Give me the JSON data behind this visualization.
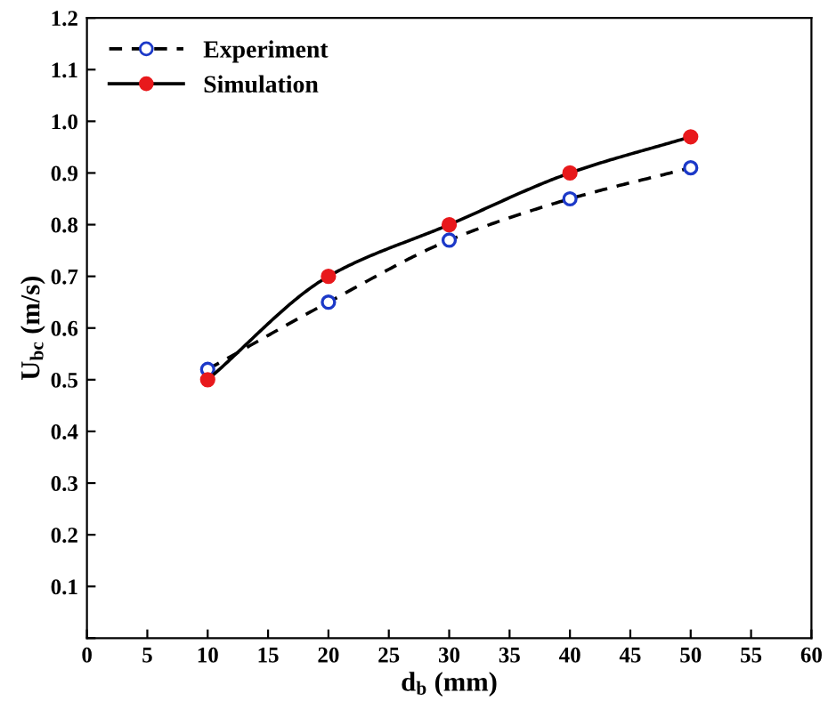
{
  "chart_data": {
    "type": "line",
    "xlabel": "d$_{b}$ (mm)",
    "ylabel": "U$_{bc}$ (m/s)",
    "x": [
      10,
      20,
      30,
      40,
      50
    ],
    "series": [
      {
        "name": "Experiment",
        "color": "#1c39c8",
        "values": [
          0.52,
          0.65,
          0.77,
          0.85,
          0.91
        ],
        "line_style": "dashed",
        "marker": "circle"
      },
      {
        "name": "Simulation",
        "color": "#e8191c",
        "values": [
          0.5,
          0.7,
          0.8,
          0.9,
          0.97
        ],
        "line_style": "solid",
        "marker": "circle"
      }
    ],
    "xlim": [
      0,
      60
    ],
    "xticks": [
      0,
      5,
      10,
      15,
      20,
      25,
      30,
      35,
      40,
      45,
      50,
      55,
      60
    ],
    "ylim": [
      0,
      1.2
    ],
    "yticks": [
      {
        "value": 0,
        "label": null
      },
      0.1,
      0.2,
      0.3,
      0.4,
      0.5,
      0.6,
      0.7,
      0.8,
      0.9,
      {
        "value": 1,
        "label": "1.0"
      },
      1.1,
      1.2
    ],
    "grid": false,
    "legend": "top left"
  }
}
